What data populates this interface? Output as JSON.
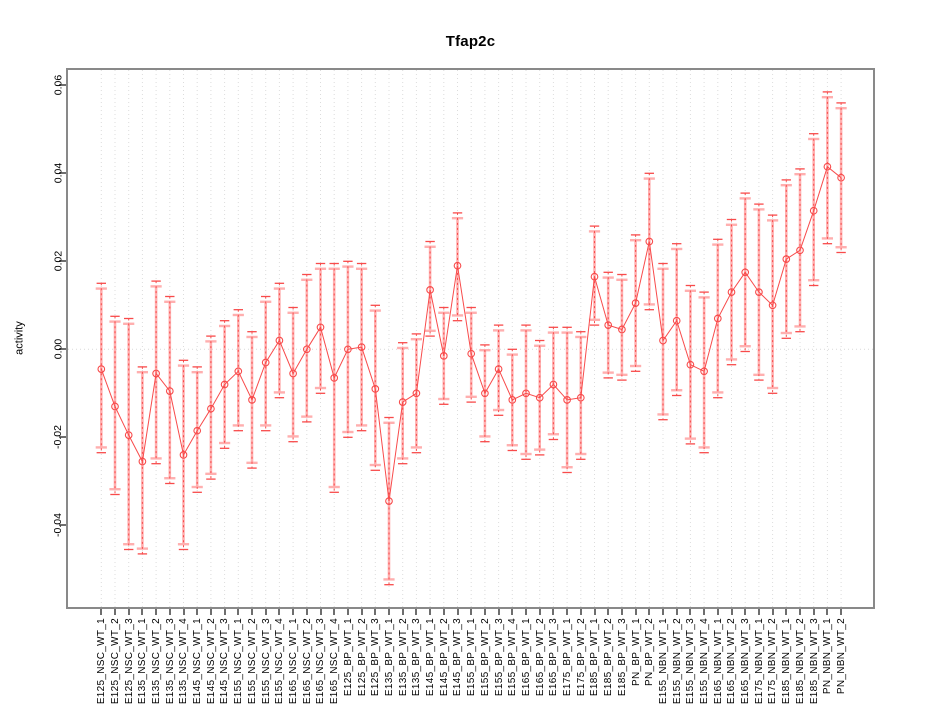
{
  "title": "Tfap2c",
  "axes": {
    "y_label": "activity",
    "y_ticks": [
      -0.04,
      -0.02,
      0,
      0.02,
      0.04,
      0.06
    ],
    "y_tick_labels": [
      "-0.04",
      "-0.02",
      "0.00",
      "0.02",
      "0.04",
      "0.06"
    ],
    "zero_reference_line": 0
  },
  "colors": {
    "series_red": "#f84b4b",
    "band_pink": "#ffafaf",
    "gridline": "#dcdcdc",
    "zero_line": "#d9d9d9",
    "border": "#898989",
    "tick": "#6e6e6e",
    "text": "#000000",
    "background": "#ffffff"
  },
  "chart_data": {
    "type": "scatter",
    "title": "Tfap2c",
    "xlabel": "",
    "ylabel": "activity",
    "ylim": [
      -0.059,
      0.0635
    ],
    "grid": "vertical dotted gridline per category; dotted horizontal line at 0",
    "legend_position": "none",
    "point_style": "open-circle",
    "line_style": "solid connecting line",
    "error_bars": "two nested intervals per point: wide pale solid band and thin dashed red whisker with caps",
    "categories": [
      "E125_NSC_WT_1",
      "E125_NSC_WT_2",
      "E125_NSC_WT_3",
      "E135_NSC_WT_1",
      "E135_NSC_WT_2",
      "E135_NSC_WT_3",
      "E135_NSC_WT_4",
      "E145_NSC_WT_1",
      "E145_NSC_WT_2",
      "E145_NSC_WT_3",
      "E155_NSC_WT_1",
      "E155_NSC_WT_2",
      "E155_NSC_WT_3",
      "E155_NSC_WT_4",
      "E165_NSC_WT_1",
      "E165_NSC_WT_2",
      "E165_NSC_WT_3",
      "E165_NSC_WT_4",
      "E125_BP_WT_1",
      "E125_BP_WT_2",
      "E125_BP_WT_3",
      "E135_BP_WT_1",
      "E135_BP_WT_2",
      "E135_BP_WT_3",
      "E145_BP_WT_1",
      "E145_BP_WT_2",
      "E145_BP_WT_3",
      "E155_BP_WT_1",
      "E155_BP_WT_2",
      "E155_BP_WT_3",
      "E155_BP_WT_4",
      "E165_BP_WT_1",
      "E165_BP_WT_2",
      "E165_BP_WT_3",
      "E175_BP_WT_1",
      "E175_BP_WT_2",
      "E185_BP_WT_1",
      "E185_BP_WT_2",
      "E185_BP_WT_3",
      "PN_BP_WT_1",
      "PN_BP_WT_2",
      "E155_NBN_WT_1",
      "E155_NBN_WT_2",
      "E155_NBN_WT_3",
      "E155_NBN_WT_4",
      "E165_NBN_WT_1",
      "E165_NBN_WT_2",
      "E165_NBN_WT_3",
      "E175_NBN_WT_1",
      "E175_NBN_WT_2",
      "E185_NBN_WT_1",
      "E185_NBN_WT_2",
      "E185_NBN_WT_3",
      "PN_NBN_WT_1",
      "PN_NBN_WT_2"
    ],
    "series": [
      {
        "name": "activity",
        "values": [
          -0.0045,
          -0.013,
          -0.0195,
          -0.0255,
          -0.0055,
          -0.0095,
          -0.024,
          -0.0185,
          -0.0135,
          -0.008,
          -0.005,
          -0.0115,
          -0.003,
          0.002,
          -0.0055,
          0,
          0.005,
          -0.0065,
          0,
          0.0005,
          -0.009,
          -0.0345,
          -0.012,
          -0.01,
          0.0135,
          -0.0015,
          0.019,
          -0.001,
          -0.01,
          -0.0045,
          -0.0115,
          -0.01,
          -0.011,
          -0.008,
          -0.0115,
          -0.011,
          0.0165,
          0.0055,
          0.0045,
          0.0105,
          0.0245,
          0.002,
          0.0065,
          -0.0035,
          -0.005,
          0.007,
          0.013,
          0.0175,
          0.013,
          0.01,
          0.0205,
          0.0225,
          0.0315,
          0.0415,
          0.039
        ],
        "lower": [
          -0.0235,
          -0.033,
          -0.0455,
          -0.0465,
          -0.026,
          -0.0305,
          -0.0455,
          -0.0325,
          -0.0295,
          -0.0225,
          -0.0185,
          -0.027,
          -0.0185,
          -0.011,
          -0.021,
          -0.0165,
          -0.01,
          -0.0325,
          -0.02,
          -0.0185,
          -0.0275,
          -0.0535,
          -0.026,
          -0.0235,
          0.003,
          -0.0125,
          0.0065,
          -0.012,
          -0.021,
          -0.015,
          -0.023,
          -0.025,
          -0.024,
          -0.0205,
          -0.028,
          -0.025,
          0.0055,
          -0.0065,
          -0.007,
          -0.005,
          0.009,
          -0.016,
          -0.0105,
          -0.0215,
          -0.0235,
          -0.011,
          -0.0035,
          -0.0005,
          -0.007,
          -0.01,
          0.0025,
          0.004,
          0.0145,
          0.024,
          0.022
        ],
        "upper": [
          0.015,
          0.0075,
          0.007,
          -0.004,
          0.0155,
          0.012,
          -0.0025,
          -0.004,
          0.003,
          0.0065,
          0.009,
          0.004,
          0.012,
          0.015,
          0.0095,
          0.017,
          0.0195,
          0.0195,
          0.02,
          0.0195,
          0.01,
          -0.0155,
          0.0015,
          0.0035,
          0.0245,
          0.0095,
          0.031,
          0.0095,
          0.001,
          0.0055,
          0,
          0.0055,
          0.002,
          0.005,
          0.005,
          0.004,
          0.028,
          0.0175,
          0.017,
          0.026,
          0.04,
          0.0195,
          0.024,
          0.0145,
          0.013,
          0.025,
          0.0295,
          0.0355,
          0.033,
          0.0305,
          0.0385,
          0.041,
          0.049,
          0.0585,
          0.056
        ]
      }
    ]
  }
}
